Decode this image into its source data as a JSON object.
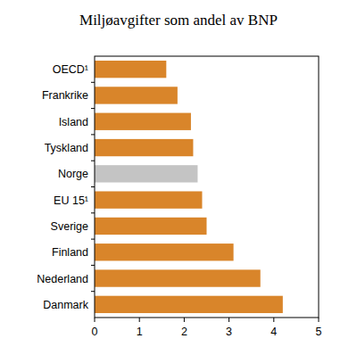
{
  "chart_data": {
    "type": "bar",
    "title": "Miljøavgifter som andel av BNP",
    "orientation": "horizontal",
    "categories": [
      "OECD¹",
      "Frankrike",
      "Island",
      "Tyskland",
      "Norge",
      "EU 15¹",
      "Sverige",
      "Finland",
      "Nederland",
      "Danmark"
    ],
    "values": [
      1.6,
      1.85,
      2.15,
      2.2,
      2.3,
      2.4,
      2.5,
      3.1,
      3.7,
      4.2
    ],
    "colors": [
      "#d9852a",
      "#d9852a",
      "#d9852a",
      "#d9852a",
      "#c4c4c4",
      "#d9852a",
      "#d9852a",
      "#d9852a",
      "#d9852a",
      "#d9852a"
    ],
    "xlim": [
      0,
      5
    ],
    "xticks": [
      0,
      1,
      2,
      3,
      4,
      5
    ],
    "grid": false
  }
}
